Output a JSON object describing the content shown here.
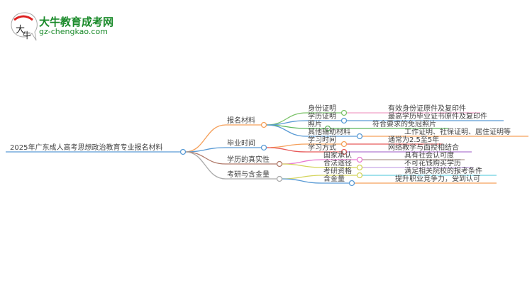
{
  "logo": {
    "title": "大牛教育成考网",
    "url": "gz-chengkao.com",
    "mark": "大牛"
  },
  "root": "2025年广东成人高考思想政治教育专业报名材料",
  "branches": [
    {
      "label": "报名材料",
      "color": "#f5a05a",
      "children": [
        {
          "label": "身份证明",
          "value": "有效身份证原件及复印件",
          "color": "#7cc36a",
          "line": "#f0a0c8"
        },
        {
          "label": "学历证明",
          "value": "最高学历毕业证书原件及复印件",
          "color": "#5a9bd5",
          "line": "#5a9bd5"
        },
        {
          "label": "照片",
          "value": "符合要求的免冠照片",
          "color": "#5cb85c",
          "line": "#5cb85c"
        },
        {
          "label": "其他辅助材料",
          "value": "工作证明、社保证明、居住证明等",
          "color": "#5a9bd5",
          "line": "#f5a05a"
        }
      ]
    },
    {
      "label": "毕业时间",
      "color": "#5a9bd5",
      "children": [
        {
          "label": "学习时间",
          "value": "通常为2.5至5年",
          "color": "#f5a05a",
          "line": "#e85a5a"
        },
        {
          "label": "学习方式",
          "value": "网络教学与面授相结合",
          "color": "#e85a5a",
          "line": "#b07ad0"
        }
      ]
    },
    {
      "label": "学历的真实性",
      "color": "#b07a6a",
      "children": [
        {
          "label": "国家承认",
          "value": "具有社会认可度",
          "color": "#e87ad0",
          "line": "#b09a90"
        },
        {
          "label": "合法途径",
          "value": "不可花钱购买学历",
          "color": "#d4d45a",
          "line": "#c8a8e8"
        }
      ]
    },
    {
      "label": "考研与含金量",
      "color": "#aaaaaa",
      "children": [
        {
          "label": "考研资格",
          "value": "满足相关院校的报考条件",
          "color": "#d4d45a",
          "line": "#6ad0e0"
        },
        {
          "label": "含金量",
          "value": "提升职业竞争力，受到认可",
          "color": "#5a9bd5",
          "line": "#f5a05a"
        }
      ]
    }
  ]
}
